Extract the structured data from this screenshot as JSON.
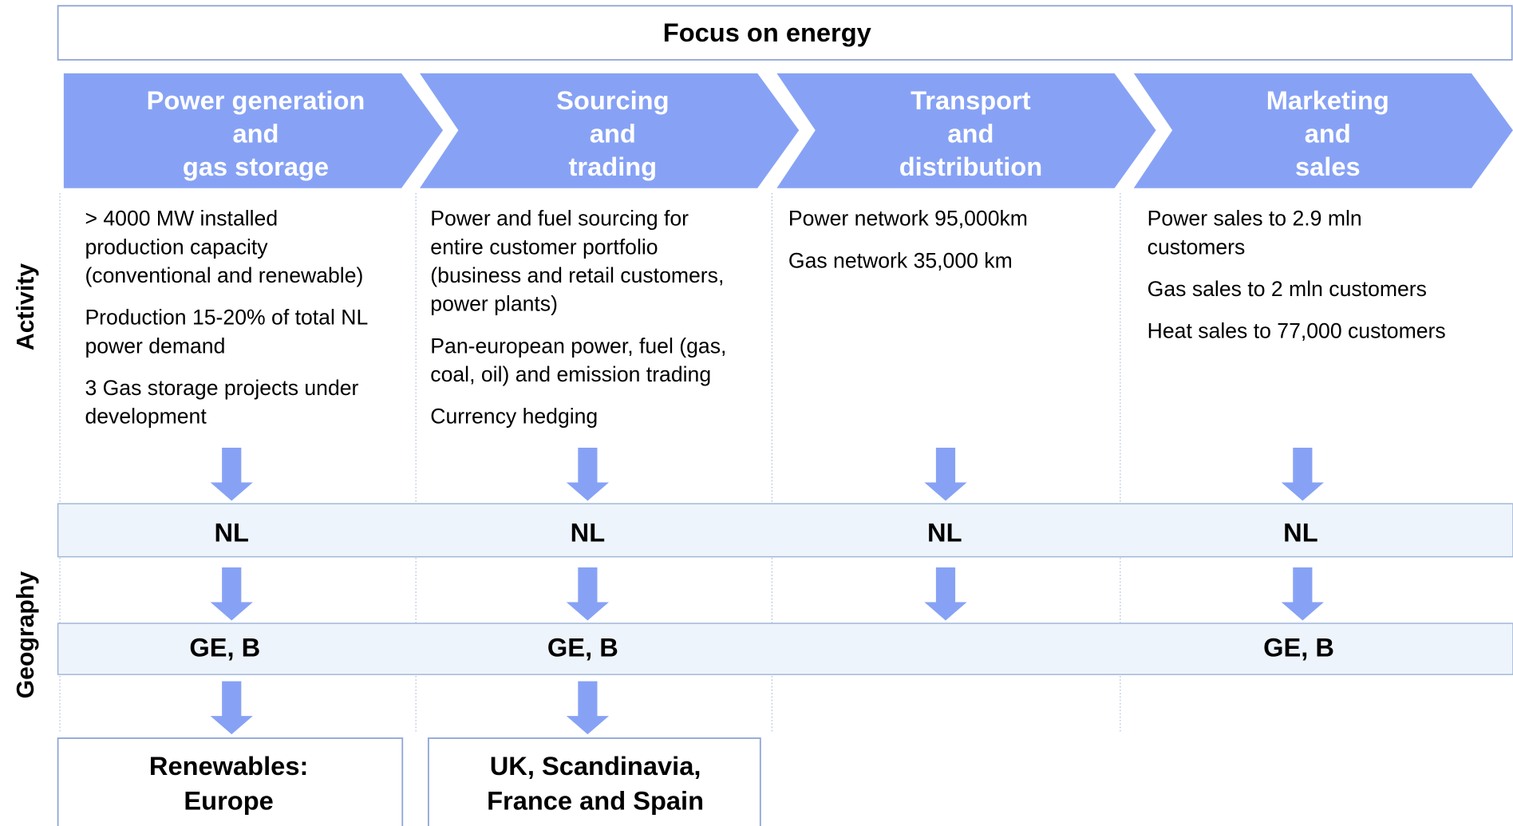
{
  "title": "Focus on energy",
  "side_labels": {
    "activity": "Activity",
    "geography": "Geography"
  },
  "columns": [
    {
      "header": [
        "Power generation",
        "and",
        "gas storage"
      ],
      "activity": [
        [
          "> 4000 MW installed",
          "production capacity",
          "(conventional and renewable)"
        ],
        [
          "Production 15-20% of total NL",
          "power demand"
        ],
        [
          "3 Gas storage projects under",
          "development"
        ]
      ]
    },
    {
      "header": [
        "Sourcing",
        "and",
        "trading"
      ],
      "activity": [
        [
          "Power and fuel sourcing for",
          "entire customer portfolio",
          "(business and retail customers,",
          "power plants)"
        ],
        [
          "Pan-european power, fuel (gas,",
          "coal, oil) and emission trading"
        ],
        [
          "Currency hedging"
        ]
      ]
    },
    {
      "header": [
        "Transport",
        "and",
        "distribution"
      ],
      "activity": [
        [
          "Power network 95,000km"
        ],
        [
          "Gas network 35,000 km"
        ]
      ]
    },
    {
      "header": [
        "Marketing",
        "and",
        "sales"
      ],
      "activity": [
        [
          "Power sales to 2.9 mln",
          "customers"
        ],
        [
          "Gas sales to 2 mln customers"
        ],
        [
          "Heat sales to 77,000 customers"
        ]
      ]
    }
  ],
  "geography_rows": [
    [
      "NL",
      "NL",
      "NL",
      "NL"
    ],
    [
      "GE, B",
      "GE, B",
      null,
      "GE, B"
    ]
  ],
  "destinations": [
    [
      "Renewables:",
      "Europe"
    ],
    [
      "UK, Scandinavia,",
      "France and Spain"
    ],
    null,
    null
  ]
}
